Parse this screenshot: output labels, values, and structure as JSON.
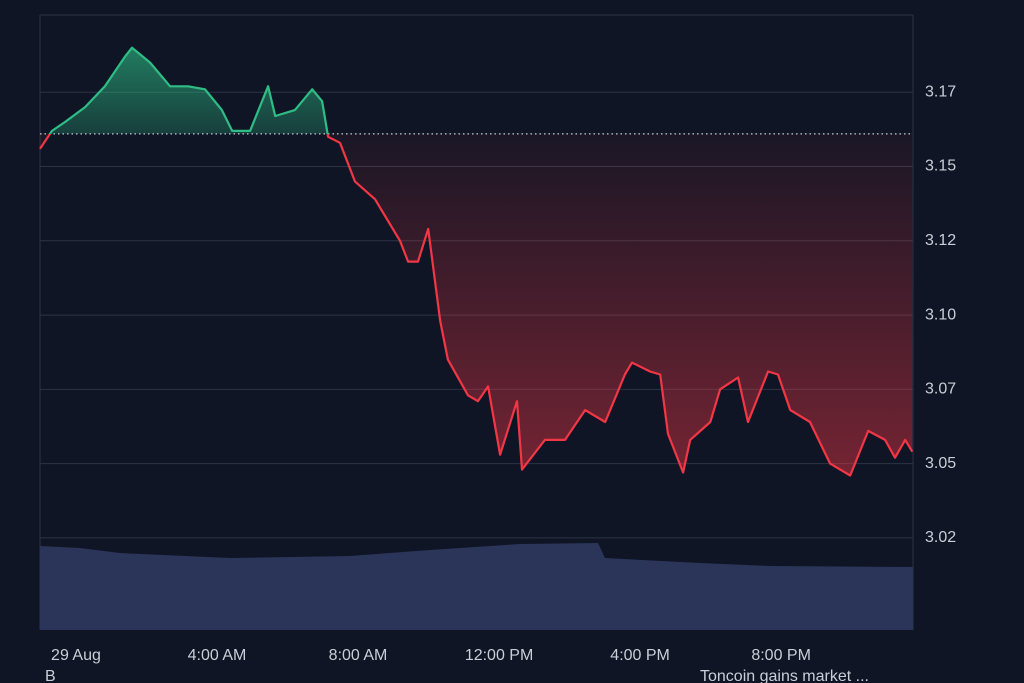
{
  "chart_data": {
    "type": "line",
    "x": [
      -1.02,
      -0.68,
      -0.31,
      0.26,
      0.82,
      1.39,
      1.59,
      2.1,
      2.67,
      3.18,
      3.66,
      4.14,
      4.43,
      4.94,
      5.45,
      5.65,
      6.21,
      6.7,
      6.98,
      7.15,
      7.49,
      7.91,
      8.48,
      9.19,
      9.42,
      9.7,
      9.99,
      10.33,
      10.55,
      11.12,
      11.4,
      11.69,
      12.03,
      12.51,
      12.65,
      13.3,
      13.87,
      14.44,
      15.01,
      15.57,
      15.77,
      16.28,
      16.57,
      16.79,
      17.22,
      17.42,
      17.99,
      18.27,
      18.78,
      19.06,
      19.63,
      19.91,
      20.26,
      20.82,
      21.39,
      21.96,
      22.47,
      22.95,
      23.23,
      23.52,
      23.72
    ],
    "series": [
      {
        "values": [
          3.156,
          3.162,
          3.165,
          3.17,
          3.177,
          3.187,
          3.19,
          3.185,
          3.177,
          3.177,
          3.176,
          3.169,
          3.162,
          3.162,
          3.177,
          3.167,
          3.169,
          3.176,
          3.172,
          3.16,
          3.158,
          3.145,
          3.139,
          3.125,
          3.118,
          3.118,
          3.129,
          3.098,
          3.085,
          3.073,
          3.071,
          3.076,
          3.053,
          3.071,
          3.048,
          3.058,
          3.058,
          3.068,
          3.064,
          3.08,
          3.084,
          3.081,
          3.08,
          3.06,
          3.047,
          3.058,
          3.064,
          3.075,
          3.079,
          3.064,
          3.081,
          3.08,
          3.068,
          3.064,
          3.05,
          3.046,
          3.061,
          3.058,
          3.052,
          3.058,
          3.054
        ]
      }
    ],
    "baseline": 3.161,
    "up_color": "#2ebd85",
    "down_color": "#f23645",
    "xlim": [
      -1.02,
      23.74
    ],
    "ylim": [
      2.994,
      3.201
    ],
    "xticks": [
      {
        "value": 0,
        "label": "29 Aug"
      },
      {
        "value": 4,
        "label": "4:00 AM"
      },
      {
        "value": 8,
        "label": "8:00 AM"
      },
      {
        "value": 12,
        "label": "12:00 PM"
      },
      {
        "value": 16,
        "label": "4:00 PM"
      },
      {
        "value": 20,
        "label": "8:00 PM"
      }
    ],
    "yticks": [
      {
        "value": 3.175,
        "label": "3.17"
      },
      {
        "value": 3.15,
        "label": "3.15"
      },
      {
        "value": 3.125,
        "label": "3.12"
      },
      {
        "value": 3.1,
        "label": "3.10"
      },
      {
        "value": 3.075,
        "label": "3.07"
      },
      {
        "value": 3.05,
        "label": "3.05"
      },
      {
        "value": 3.025,
        "label": "3.02"
      }
    ],
    "grid": true,
    "annotations": [
      "B",
      "Toncoin gains market ..."
    ]
  }
}
